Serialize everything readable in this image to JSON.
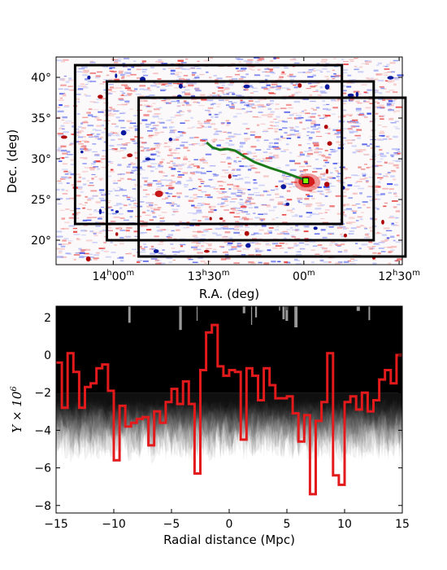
{
  "chart_data": [
    {
      "type": "map",
      "xlabel": "R.A. (deg)",
      "ylabel": "Dec. (deg)",
      "xlim_hours": [
        14.3,
        12.4833
      ],
      "ylim_deg": [
        17,
        42.5
      ],
      "xticks": [
        {
          "value": 14.0,
          "h": "14",
          "m": "00"
        },
        {
          "value": 13.5,
          "h": "13",
          "m": "30"
        },
        {
          "value": 13.0,
          "h": "",
          "m": "00"
        },
        {
          "value": 12.5,
          "h": "12",
          "m": "30"
        }
      ],
      "yticks": [
        {
          "value": 20,
          "label": "20°"
        },
        {
          "value": 25,
          "label": "25°"
        },
        {
          "value": 30,
          "label": "30°"
        },
        {
          "value": 35,
          "label": "35°"
        },
        {
          "value": 40,
          "label": "40°"
        }
      ],
      "h_unit": "h",
      "m_unit": "m",
      "rectangles": [
        {
          "ra": [
            14.2,
            12.8
          ],
          "dec": [
            22,
            41.5
          ]
        },
        {
          "ra": [
            14.0333,
            12.6333
          ],
          "dec": [
            20,
            39.5
          ]
        },
        {
          "ra": [
            13.8667,
            12.4667
          ],
          "dec": [
            18,
            37.5
          ]
        }
      ],
      "track": [
        [
          13.51,
          32.0
        ],
        [
          13.48,
          31.4
        ],
        [
          13.44,
          31.1
        ],
        [
          13.4,
          31.2
        ],
        [
          13.36,
          31.0
        ],
        [
          13.32,
          30.4
        ],
        [
          13.26,
          29.6
        ],
        [
          13.18,
          28.9
        ],
        [
          13.1,
          28.3
        ],
        [
          13.03,
          27.7
        ],
        [
          12.99,
          27.4
        ]
      ],
      "source": {
        "ra": 12.99,
        "dec": 27.3
      },
      "colors": {
        "track": "#1a7a1a",
        "source": "#7cfc00",
        "red": "#e02020",
        "blue": "#2030e0",
        "rect": "#000000"
      }
    },
    {
      "type": "line",
      "xlabel": "Radial distance (Mpc)",
      "ylabel": "Y × 10",
      "ylabel_exp": "6",
      "xlim": [
        -15,
        15
      ],
      "ylim": [
        -8.4,
        2.6
      ],
      "xticks": [
        -15,
        -10,
        -5,
        0,
        5,
        10,
        15
      ],
      "yticks": [
        -8,
        -6,
        -4,
        -2,
        0,
        2
      ],
      "band": {
        "upper": 2.6,
        "core_lower": -2.0
      },
      "series": [
        {
          "style": "step",
          "color": "#e31a1c",
          "x": [
            -15,
            -14.5,
            -14,
            -13.5,
            -13,
            -12.5,
            -12,
            -11.5,
            -11,
            -10.5,
            -10,
            -9.5,
            -9,
            -8.5,
            -8,
            -7.5,
            -7,
            -6.5,
            -6,
            -5.5,
            -5,
            -4.5,
            -4,
            -3.5,
            -3,
            -2.5,
            -2,
            -1.5,
            -1,
            -0.5,
            0,
            0.5,
            1,
            1.5,
            2,
            2.5,
            3,
            3.5,
            4,
            4.5,
            5,
            5.5,
            6,
            6.5,
            7,
            7.5,
            8,
            8.5,
            9,
            9.5,
            10,
            10.5,
            11,
            11.5,
            12,
            12.5,
            13,
            13.5,
            14,
            14.5,
            15
          ],
          "values": [
            -0.4,
            -2.8,
            0.1,
            -0.9,
            -2.8,
            -1.7,
            -1.5,
            -0.7,
            -0.5,
            -1.9,
            -5.6,
            -2.7,
            -3.8,
            -3.6,
            -3.4,
            -3.3,
            -4.8,
            -3.0,
            -3.6,
            -2.5,
            -1.8,
            -2.6,
            -1.4,
            -2.6,
            -6.3,
            -0.8,
            1.2,
            1.6,
            -0.6,
            -1.1,
            -0.8,
            -0.9,
            -4.5,
            -0.7,
            -1.1,
            -2.4,
            -0.7,
            -1.6,
            -2.3,
            -2.3,
            -2.2,
            -3.1,
            -4.6,
            -3.2,
            -7.4,
            -3.5,
            -2.5,
            0.1,
            -6.4,
            -6.9,
            -2.5,
            -2.2,
            -2.9,
            -2.0,
            -3.0,
            -2.4,
            -1.3,
            -0.8,
            -1.5,
            0.0,
            0.0
          ]
        }
      ]
    }
  ]
}
